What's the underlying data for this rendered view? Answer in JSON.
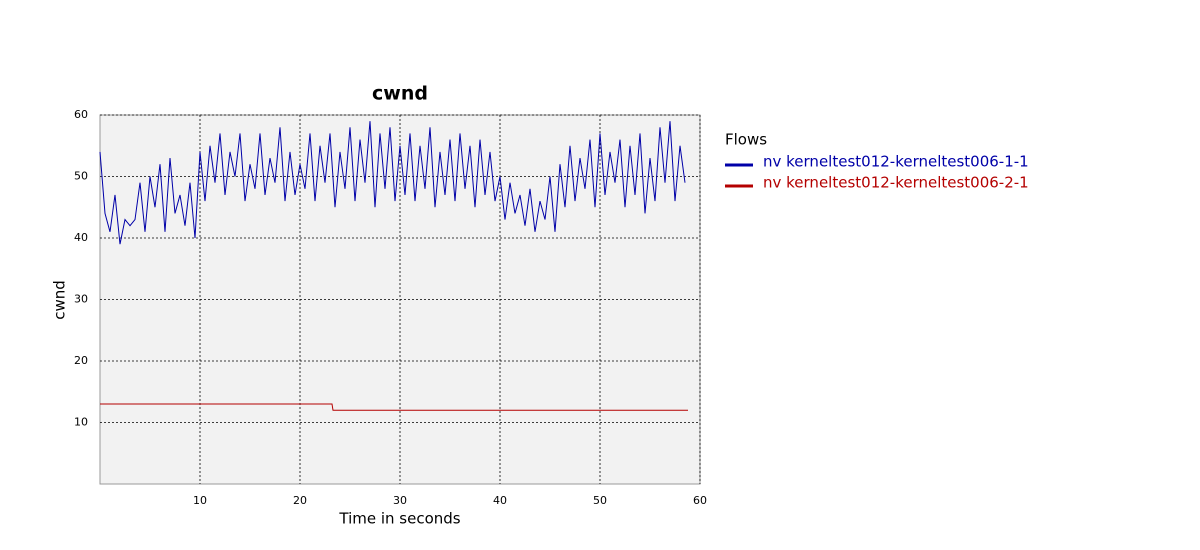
{
  "chart_data": {
    "type": "line",
    "title": "cwnd",
    "x_label": "Time in seconds",
    "y_label": "cwnd",
    "xlim": [
      0,
      60
    ],
    "xticks": [
      10,
      20,
      30,
      40,
      50,
      60
    ],
    "ylim": [
      0,
      60
    ],
    "yticks": [
      10,
      20,
      30,
      40,
      50,
      60
    ],
    "grid": true,
    "legend_title": "Flows",
    "legend": "right",
    "series": [
      {
        "name": "nv kerneltest012-kerneltest006-1-1",
        "color": "#0000a8",
        "x": [
          0,
          0.5,
          1,
          1.5,
          2,
          2.5,
          3,
          3.5,
          4,
          4.5,
          5,
          5.5,
          6,
          6.5,
          7,
          7.5,
          8,
          8.5,
          9,
          9.5,
          10,
          10.5,
          11,
          11.5,
          12,
          12.5,
          13,
          13.5,
          14,
          14.5,
          15,
          15.5,
          16,
          16.5,
          17,
          17.5,
          18,
          18.5,
          19,
          19.5,
          20,
          20.5,
          21,
          21.5,
          22,
          22.5,
          23,
          23.5,
          24,
          24.5,
          25,
          25.5,
          26,
          26.5,
          27,
          27.5,
          28,
          28.5,
          29,
          29.5,
          30,
          30.5,
          31,
          31.5,
          32,
          32.5,
          33,
          33.5,
          34,
          34.5,
          35,
          35.5,
          36,
          36.5,
          37,
          37.5,
          38,
          38.5,
          39,
          39.5,
          40,
          40.5,
          41,
          41.5,
          42,
          42.5,
          43,
          43.5,
          44,
          44.5,
          45,
          45.5,
          46,
          46.5,
          47,
          47.5,
          48,
          48.5,
          49,
          49.5,
          50,
          50.5,
          51,
          51.5,
          52,
          52.5,
          53,
          53.5,
          54,
          54.5,
          55,
          55.5,
          56,
          56.5,
          57,
          57.5,
          58,
          58.5
        ],
        "values": [
          54,
          44,
          41,
          47,
          39,
          43,
          42,
          43,
          49,
          41,
          50,
          45,
          52,
          41,
          53,
          44,
          47,
          42,
          49,
          40,
          54,
          46,
          55,
          49,
          57,
          47,
          54,
          50,
          57,
          46,
          52,
          48,
          57,
          47,
          53,
          49,
          58,
          46,
          54,
          47,
          52,
          48,
          57,
          46,
          55,
          49,
          57,
          45,
          54,
          48,
          58,
          46,
          56,
          49,
          59,
          45,
          57,
          48,
          58,
          46,
          55,
          47,
          57,
          46,
          55,
          48,
          58,
          45,
          54,
          47,
          56,
          46,
          57,
          48,
          55,
          45,
          56,
          47,
          54,
          46,
          50,
          43,
          49,
          44,
          47,
          42,
          48,
          41,
          46,
          43,
          50,
          41,
          52,
          45,
          55,
          46,
          53,
          48,
          56,
          45,
          57,
          47,
          54,
          49,
          56,
          45,
          55,
          47,
          57,
          44,
          53,
          46,
          58,
          49,
          59,
          46,
          55,
          49
        ]
      },
      {
        "name": "nv kerneltest012-kerneltest006-2-1",
        "color": "#b40000",
        "x": [
          0,
          23.2,
          23.3,
          58.8
        ],
        "values": [
          13,
          13,
          12,
          12
        ]
      }
    ]
  }
}
